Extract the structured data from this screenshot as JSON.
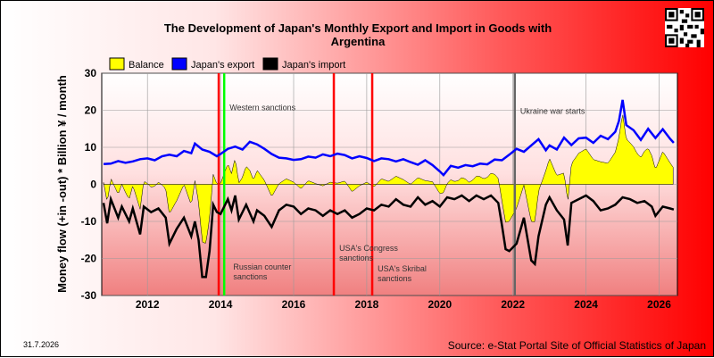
{
  "chart_data": {
    "type": "line",
    "title_lines": [
      "The Development of Japan's Monthly Export and Import in Goods with",
      "Argentina"
    ],
    "ylabel": "Money flow (+in -out) * Billion ¥ / month",
    "xlabel": "",
    "ylim": [
      -30,
      30
    ],
    "xlim": [
      2010.75,
      2026.5
    ],
    "y_ticks": [
      30,
      20,
      10,
      0,
      -10,
      -20,
      -30
    ],
    "x_ticks": [
      2012,
      2014,
      2016,
      2018,
      2020,
      2022,
      2024,
      2026
    ],
    "grid": true,
    "legend_placement": "top-left",
    "series": [
      {
        "name": "Balance",
        "key": "balance",
        "color": "#ffff00",
        "style": "filled-area"
      },
      {
        "name": "Japan's export",
        "key": "export",
        "color": "#0000ff",
        "style": "line",
        "points": [
          [
            2010.8,
            5.5
          ],
          [
            2011.0,
            5.6
          ],
          [
            2011.2,
            6.3
          ],
          [
            2011.4,
            5.8
          ],
          [
            2011.6,
            6.2
          ],
          [
            2011.8,
            6.8
          ],
          [
            2012.0,
            7.0
          ],
          [
            2012.2,
            6.5
          ],
          [
            2012.4,
            7.6
          ],
          [
            2012.6,
            8.0
          ],
          [
            2012.8,
            7.6
          ],
          [
            2013.0,
            9.0
          ],
          [
            2013.2,
            8.4
          ],
          [
            2013.3,
            11.0
          ],
          [
            2013.5,
            9.4
          ],
          [
            2013.7,
            8.8
          ],
          [
            2013.9,
            7.6
          ],
          [
            2014.0,
            8.2
          ],
          [
            2014.2,
            9.6
          ],
          [
            2014.4,
            10.2
          ],
          [
            2014.6,
            9.4
          ],
          [
            2014.8,
            11.5
          ],
          [
            2015.0,
            10.8
          ],
          [
            2015.2,
            9.6
          ],
          [
            2015.4,
            8.2
          ],
          [
            2015.6,
            7.2
          ],
          [
            2015.8,
            7.0
          ],
          [
            2016.0,
            6.6
          ],
          [
            2016.2,
            6.8
          ],
          [
            2016.4,
            7.5
          ],
          [
            2016.6,
            7.2
          ],
          [
            2016.8,
            8.1
          ],
          [
            2017.0,
            7.6
          ],
          [
            2017.2,
            8.3
          ],
          [
            2017.4,
            7.9
          ],
          [
            2017.6,
            7.0
          ],
          [
            2017.8,
            7.6
          ],
          [
            2018.0,
            7.1
          ],
          [
            2018.2,
            6.3
          ],
          [
            2018.4,
            7.0
          ],
          [
            2018.6,
            6.8
          ],
          [
            2018.8,
            6.2
          ],
          [
            2019.0,
            6.8
          ],
          [
            2019.2,
            6.0
          ],
          [
            2019.4,
            5.3
          ],
          [
            2019.6,
            6.5
          ],
          [
            2019.8,
            5.2
          ],
          [
            2020.0,
            3.5
          ],
          [
            2020.1,
            2.5
          ],
          [
            2020.3,
            5.0
          ],
          [
            2020.5,
            4.5
          ],
          [
            2020.7,
            5.2
          ],
          [
            2020.9,
            4.9
          ],
          [
            2021.1,
            5.6
          ],
          [
            2021.3,
            5.4
          ],
          [
            2021.5,
            6.7
          ],
          [
            2021.7,
            6.5
          ],
          [
            2021.9,
            8.0
          ],
          [
            2022.1,
            9.6
          ],
          [
            2022.3,
            8.8
          ],
          [
            2022.5,
            10.5
          ],
          [
            2022.7,
            12.2
          ],
          [
            2022.9,
            9.2
          ],
          [
            2023.0,
            10.5
          ],
          [
            2023.2,
            9.4
          ],
          [
            2023.4,
            12.6
          ],
          [
            2023.6,
            10.6
          ],
          [
            2023.8,
            12.4
          ],
          [
            2024.0,
            12.6
          ],
          [
            2024.2,
            11.2
          ],
          [
            2024.4,
            13.1
          ],
          [
            2024.6,
            12.2
          ],
          [
            2024.8,
            14.2
          ],
          [
            2024.9,
            17.1
          ],
          [
            2025.0,
            22.8
          ],
          [
            2025.1,
            16.0
          ],
          [
            2025.3,
            14.6
          ],
          [
            2025.5,
            12.0
          ],
          [
            2025.7,
            15.0
          ],
          [
            2025.9,
            12.5
          ],
          [
            2026.1,
            14.9
          ],
          [
            2026.3,
            12.3
          ],
          [
            2026.4,
            11.2
          ]
        ]
      },
      {
        "name": "Japan's import",
        "key": "import",
        "color": "#000000",
        "style": "line",
        "points": [
          [
            2010.8,
            -5.0
          ],
          [
            2010.9,
            -10.5
          ],
          [
            2011.0,
            -4.0
          ],
          [
            2011.2,
            -9.0
          ],
          [
            2011.3,
            -6.0
          ],
          [
            2011.5,
            -10.0
          ],
          [
            2011.6,
            -6.5
          ],
          [
            2011.8,
            -13.5
          ],
          [
            2011.9,
            -6.0
          ],
          [
            2012.1,
            -7.5
          ],
          [
            2012.3,
            -6.5
          ],
          [
            2012.5,
            -9.0
          ],
          [
            2012.6,
            -16.0
          ],
          [
            2012.8,
            -12.0
          ],
          [
            2013.0,
            -9.0
          ],
          [
            2013.2,
            -14.0
          ],
          [
            2013.3,
            -10.0
          ],
          [
            2013.4,
            -15.0
          ],
          [
            2013.5,
            -25.0
          ],
          [
            2013.6,
            -25.0
          ],
          [
            2013.7,
            -18.0
          ],
          [
            2013.8,
            -5.5
          ],
          [
            2013.9,
            -7.5
          ],
          [
            2014.0,
            -8.0
          ],
          [
            2014.1,
            -6.0
          ],
          [
            2014.2,
            -4.0
          ],
          [
            2014.3,
            -7.0
          ],
          [
            2014.4,
            -3.0
          ],
          [
            2014.5,
            -9.5
          ],
          [
            2014.7,
            -5.5
          ],
          [
            2014.9,
            -10.0
          ],
          [
            2015.0,
            -7.0
          ],
          [
            2015.2,
            -8.5
          ],
          [
            2015.4,
            -11.5
          ],
          [
            2015.6,
            -7.0
          ],
          [
            2015.8,
            -5.5
          ],
          [
            2016.0,
            -6.0
          ],
          [
            2016.2,
            -8.0
          ],
          [
            2016.4,
            -6.5
          ],
          [
            2016.6,
            -7.0
          ],
          [
            2016.8,
            -8.5
          ],
          [
            2017.0,
            -7.0
          ],
          [
            2017.2,
            -8.0
          ],
          [
            2017.4,
            -7.0
          ],
          [
            2017.6,
            -9.0
          ],
          [
            2017.8,
            -8.0
          ],
          [
            2018.0,
            -6.5
          ],
          [
            2018.2,
            -7.0
          ],
          [
            2018.4,
            -5.5
          ],
          [
            2018.6,
            -6.0
          ],
          [
            2018.8,
            -4.0
          ],
          [
            2019.0,
            -5.5
          ],
          [
            2019.2,
            -6.0
          ],
          [
            2019.4,
            -3.5
          ],
          [
            2019.6,
            -5.5
          ],
          [
            2019.8,
            -4.5
          ],
          [
            2020.0,
            -6.0
          ],
          [
            2020.2,
            -3.5
          ],
          [
            2020.4,
            -4.0
          ],
          [
            2020.6,
            -3.0
          ],
          [
            2020.8,
            -4.5
          ],
          [
            2021.0,
            -3.0
          ],
          [
            2021.2,
            -4.0
          ],
          [
            2021.4,
            -3.0
          ],
          [
            2021.6,
            -5.0
          ],
          [
            2021.7,
            -11.0
          ],
          [
            2021.8,
            -17.5
          ],
          [
            2021.9,
            -18.0
          ],
          [
            2022.1,
            -16.0
          ],
          [
            2022.3,
            -9.0
          ],
          [
            2022.5,
            -20.5
          ],
          [
            2022.6,
            -21.5
          ],
          [
            2022.7,
            -14.0
          ],
          [
            2022.9,
            -5.5
          ],
          [
            2023.0,
            -3.5
          ],
          [
            2023.2,
            -7.0
          ],
          [
            2023.4,
            -9.5
          ],
          [
            2023.5,
            -16.5
          ],
          [
            2023.6,
            -5.0
          ],
          [
            2023.8,
            -4.0
          ],
          [
            2024.0,
            -3.0
          ],
          [
            2024.2,
            -4.5
          ],
          [
            2024.4,
            -7.0
          ],
          [
            2024.6,
            -6.5
          ],
          [
            2024.8,
            -5.5
          ],
          [
            2025.0,
            -3.5
          ],
          [
            2025.2,
            -4.0
          ],
          [
            2025.4,
            -5.0
          ],
          [
            2025.6,
            -4.5
          ],
          [
            2025.8,
            -6.0
          ],
          [
            2025.9,
            -8.5
          ],
          [
            2026.1,
            -6.0
          ],
          [
            2026.3,
            -6.5
          ],
          [
            2026.4,
            -6.8
          ]
        ]
      }
    ],
    "annotations": [
      {
        "lines": [
          "Western sanctions"
        ],
        "x": 2014.2,
        "y": 20,
        "color": "#00ff00"
      },
      {
        "lines": [
          "Russian counter",
          "sanctions"
        ],
        "x": 2014.3,
        "y": -23,
        "color": "#ff0000",
        "line_x": 2013.95
      },
      {
        "lines": [
          "USA's Congress",
          "sanctions"
        ],
        "x": 2017.2,
        "y": -18,
        "color": "#ff0000"
      },
      {
        "lines": [
          "USA's Skribal",
          "sanctions"
        ],
        "x": 2018.25,
        "y": -23.5,
        "color": "#ff0000"
      },
      {
        "lines": [
          "Ukraine war starts"
        ],
        "x": 2022.15,
        "y": 19,
        "color": "#666666"
      }
    ]
  },
  "legend": {
    "items": [
      {
        "label": "Balance",
        "color": "#ffff00"
      },
      {
        "label": "Japan's export",
        "color": "#0000ff"
      },
      {
        "label": "Japan's import",
        "color": "#000000"
      }
    ]
  },
  "date_stamp": "31.7.2026",
  "source": "Source: e-Stat Portal Site of Official Statistics of Japan"
}
